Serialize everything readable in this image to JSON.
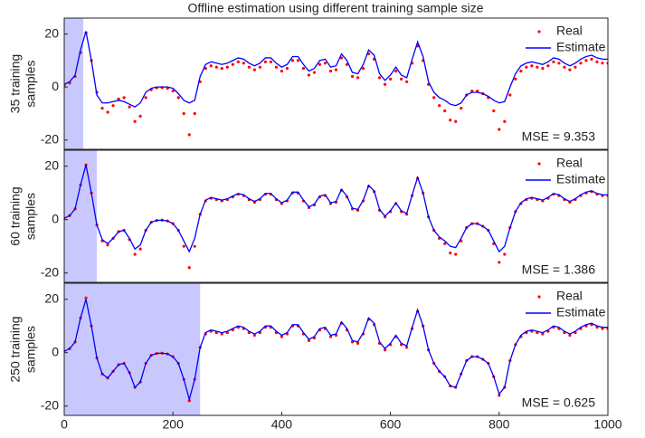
{
  "chart_data": [
    {
      "type": "line",
      "title": "Offline estimation using different training sample size",
      "ylabel": [
        "35 training",
        "samples"
      ],
      "annotation": "MSE = 9.353",
      "highlight": [
        0,
        35
      ],
      "ylim": [
        -23.5,
        26
      ],
      "yticks": [
        -20,
        0,
        20
      ],
      "xlim": [
        0,
        1000
      ],
      "legend": "upper right",
      "x": [
        0,
        10,
        20,
        30,
        40,
        50,
        60,
        70,
        80,
        90,
        100,
        110,
        120,
        130,
        140,
        150,
        160,
        170,
        180,
        190,
        200,
        210,
        220,
        230,
        240,
        250,
        260,
        270,
        280,
        290,
        300,
        310,
        320,
        330,
        340,
        350,
        360,
        370,
        380,
        390,
        400,
        410,
        420,
        430,
        440,
        450,
        460,
        470,
        480,
        490,
        500,
        510,
        520,
        530,
        540,
        550,
        560,
        570,
        580,
        590,
        600,
        610,
        620,
        630,
        640,
        650,
        660,
        670,
        680,
        690,
        700,
        710,
        720,
        730,
        740,
        750,
        760,
        770,
        780,
        790,
        800,
        810,
        820,
        830,
        840,
        850,
        860,
        870,
        880,
        890,
        900,
        910,
        920,
        930,
        940,
        950,
        960,
        970,
        980,
        990,
        1000
      ],
      "series": [
        {
          "name": "Real",
          "color": "#ff0000",
          "style": "dots",
          "values": [
            0.5,
            1.5,
            4,
            13,
            20.5,
            10,
            -2,
            -8,
            -9.5,
            -7,
            -4.5,
            -4,
            -7.5,
            -13,
            -11,
            -4,
            -1,
            -0.3,
            -0.2,
            -0.5,
            -1.5,
            -4,
            -10,
            -18,
            -10,
            2,
            7,
            8,
            7.5,
            7,
            7.5,
            8.5,
            9.5,
            9,
            7.5,
            6.5,
            7.5,
            9.5,
            9.5,
            7.5,
            6,
            7,
            10,
            10,
            7,
            4.5,
            5.5,
            8.5,
            9,
            6,
            6.5,
            11,
            8.5,
            4,
            3.5,
            7,
            12.5,
            10.5,
            3.5,
            1,
            3,
            6,
            3,
            2,
            9,
            15.5,
            10,
            1,
            -4,
            -7,
            -9,
            -12.5,
            -13,
            -8,
            -3,
            -1.5,
            -1.5,
            -2.5,
            -4,
            -9,
            -16,
            -13,
            -3,
            3,
            6,
            7.5,
            8,
            7.5,
            7,
            8,
            9.5,
            9,
            7.5,
            6.5,
            7.5,
            9,
            10,
            10.5,
            9.5,
            9,
            9
          ]
        },
        {
          "name": "Estimate",
          "color": "#0000ff",
          "style": "line",
          "values": [
            1,
            2,
            4.5,
            14,
            21,
            10,
            -3,
            -6,
            -6,
            -5.5,
            -5,
            -5.5,
            -6.5,
            -7.5,
            -6,
            -2,
            -0.5,
            0,
            0,
            0,
            -0.5,
            -2.5,
            -5,
            -6,
            -5,
            4,
            8.5,
            9.5,
            9,
            8.5,
            9,
            10,
            11,
            10.5,
            9,
            8,
            9,
            11,
            11,
            9,
            7.5,
            8.5,
            11.5,
            11.5,
            8.5,
            6,
            7,
            10,
            10.5,
            7.5,
            8,
            12.5,
            10,
            5.5,
            5,
            8.5,
            14,
            12,
            5,
            2.5,
            4.5,
            7.5,
            4.5,
            3.5,
            10.5,
            17,
            11.5,
            2,
            -2,
            -4,
            -5,
            -6.5,
            -7,
            -6,
            -3,
            -2,
            -2,
            -2.5,
            -3.5,
            -5,
            -6,
            -5.5,
            0,
            5,
            8,
            9,
            9.5,
            9,
            8.5,
            9.5,
            11,
            10.5,
            9,
            8,
            9,
            10.5,
            11.5,
            12,
            11,
            10.5,
            10.5
          ]
        }
      ]
    },
    {
      "type": "line",
      "ylabel": [
        "60 training",
        "samples"
      ],
      "annotation": "MSE = 1.386",
      "highlight": [
        0,
        60
      ],
      "ylim": [
        -23.5,
        26
      ],
      "yticks": [
        -20,
        0,
        20
      ],
      "xlim": [
        0,
        1000
      ],
      "legend": "upper right",
      "x": [
        0,
        10,
        20,
        30,
        40,
        50,
        60,
        70,
        80,
        90,
        100,
        110,
        120,
        130,
        140,
        150,
        160,
        170,
        180,
        190,
        200,
        210,
        220,
        230,
        240,
        250,
        260,
        270,
        280,
        290,
        300,
        310,
        320,
        330,
        340,
        350,
        360,
        370,
        380,
        390,
        400,
        410,
        420,
        430,
        440,
        450,
        460,
        470,
        480,
        490,
        500,
        510,
        520,
        530,
        540,
        550,
        560,
        570,
        580,
        590,
        600,
        610,
        620,
        630,
        640,
        650,
        660,
        670,
        680,
        690,
        700,
        710,
        720,
        730,
        740,
        750,
        760,
        770,
        780,
        790,
        800,
        810,
        820,
        830,
        840,
        850,
        860,
        870,
        880,
        890,
        900,
        910,
        920,
        930,
        940,
        950,
        960,
        970,
        980,
        990,
        1000
      ],
      "series": [
        {
          "name": "Real",
          "color": "#ff0000",
          "style": "dots",
          "values": [
            0.5,
            1.5,
            4,
            13,
            20.5,
            10,
            -2,
            -8,
            -9.5,
            -7,
            -4.5,
            -4,
            -7.5,
            -13,
            -11,
            -4,
            -1,
            -0.3,
            -0.2,
            -0.5,
            -1.5,
            -4,
            -10,
            -18,
            -10,
            2,
            7,
            8,
            7.5,
            7,
            7.5,
            8.5,
            9.5,
            9,
            7.5,
            6.5,
            7.5,
            9.5,
            9.5,
            7.5,
            6,
            7,
            10,
            10,
            7,
            4.5,
            5.5,
            8.5,
            9,
            6,
            6.5,
            11,
            8.5,
            4,
            3.5,
            7,
            12.5,
            10.5,
            3.5,
            1,
            3,
            6,
            3,
            2,
            9,
            15.5,
            10,
            1,
            -4,
            -7,
            -9,
            -12.5,
            -13,
            -8,
            -3,
            -1.5,
            -1.5,
            -2.5,
            -4,
            -9,
            -16,
            -13,
            -3,
            3,
            6,
            7.5,
            8,
            7.5,
            7,
            8,
            9.5,
            9,
            7.5,
            6.5,
            7.5,
            9,
            10,
            10.5,
            9.5,
            9,
            9
          ]
        },
        {
          "name": "Estimate",
          "color": "#0000ff",
          "style": "line",
          "values": [
            0.5,
            1.5,
            4,
            13,
            20.5,
            10,
            -2,
            -7.5,
            -9,
            -7,
            -4.5,
            -4,
            -7,
            -11,
            -9.5,
            -4,
            -1,
            -0.3,
            -0.2,
            -0.5,
            -1.5,
            -4,
            -8,
            -12,
            -7,
            2,
            7.3,
            8.3,
            7.8,
            7.3,
            7.8,
            8.8,
            9.8,
            9.3,
            7.8,
            6.8,
            7.8,
            9.8,
            9.8,
            7.8,
            6.3,
            7.3,
            10.3,
            10.3,
            7.3,
            4.8,
            5.8,
            8.8,
            9.3,
            6.3,
            6.8,
            11.3,
            8.8,
            4.3,
            3.8,
            7.3,
            12.8,
            10.8,
            3.8,
            1.3,
            3.3,
            6.3,
            3.3,
            2.3,
            9.3,
            15.8,
            10,
            1,
            -4,
            -6.5,
            -8,
            -10,
            -10.5,
            -7,
            -3,
            -1.5,
            -1.5,
            -2.5,
            -4,
            -8,
            -12,
            -10,
            -3,
            3,
            6.3,
            7.8,
            8.3,
            7.8,
            7.3,
            8.3,
            9.8,
            9.3,
            7.8,
            6.8,
            7.8,
            9.3,
            10.3,
            10.8,
            9.8,
            9.3,
            9.3
          ]
        }
      ]
    },
    {
      "type": "line",
      "ylabel": [
        "250 training",
        "samples"
      ],
      "annotation": "MSE = 0.625",
      "highlight": [
        0,
        250
      ],
      "ylim": [
        -23.5,
        26
      ],
      "yticks": [
        -20,
        0,
        20
      ],
      "xlim": [
        0,
        1000
      ],
      "xticks": [
        0,
        200,
        400,
        600,
        800,
        1000
      ],
      "legend": "upper right",
      "x": [
        0,
        10,
        20,
        30,
        40,
        50,
        60,
        70,
        80,
        90,
        100,
        110,
        120,
        130,
        140,
        150,
        160,
        170,
        180,
        190,
        200,
        210,
        220,
        230,
        240,
        250,
        260,
        270,
        280,
        290,
        300,
        310,
        320,
        330,
        340,
        350,
        360,
        370,
        380,
        390,
        400,
        410,
        420,
        430,
        440,
        450,
        460,
        470,
        480,
        490,
        500,
        510,
        520,
        530,
        540,
        550,
        560,
        570,
        580,
        590,
        600,
        610,
        620,
        630,
        640,
        650,
        660,
        670,
        680,
        690,
        700,
        710,
        720,
        730,
        740,
        750,
        760,
        770,
        780,
        790,
        800,
        810,
        820,
        830,
        840,
        850,
        860,
        870,
        880,
        890,
        900,
        910,
        920,
        930,
        940,
        950,
        960,
        970,
        980,
        990,
        1000
      ],
      "series": [
        {
          "name": "Real",
          "color": "#ff0000",
          "style": "dots",
          "values": [
            0.5,
            1.5,
            4,
            13,
            20.5,
            10,
            -2,
            -8,
            -9.5,
            -7,
            -4.5,
            -4,
            -7.5,
            -13,
            -11,
            -4,
            -1,
            -0.3,
            -0.2,
            -0.5,
            -1.5,
            -4,
            -10,
            -18,
            -10,
            2,
            7,
            8,
            7.5,
            7,
            7.5,
            8.5,
            9.5,
            9,
            7.5,
            6.5,
            7.5,
            9.5,
            9.5,
            7.5,
            6,
            7,
            10,
            10,
            7,
            4.5,
            5.5,
            8.5,
            9,
            6,
            6.5,
            11,
            8.5,
            4,
            3.5,
            7,
            12.5,
            10.5,
            3.5,
            1,
            3,
            6,
            3,
            2,
            9,
            15.5,
            10,
            1,
            -4,
            -7,
            -9,
            -12.5,
            -13,
            -8,
            -3,
            -1.5,
            -1.5,
            -2.5,
            -4,
            -9,
            -16,
            -13,
            -3,
            3,
            6,
            7.5,
            8,
            7.5,
            7,
            8,
            9.5,
            9,
            7.5,
            6.5,
            7.5,
            9,
            10,
            10.5,
            9.5,
            9,
            9
          ]
        },
        {
          "name": "Estimate",
          "color": "#0000ff",
          "style": "line",
          "values": [
            0.5,
            1.5,
            4,
            13,
            20,
            10,
            -2,
            -8,
            -9.5,
            -7,
            -4.5,
            -4,
            -7.5,
            -13,
            -11,
            -4,
            -1,
            -0.3,
            -0.2,
            -0.5,
            -1.5,
            -4,
            -10,
            -17.5,
            -10,
            2,
            7.5,
            8.5,
            8,
            7.5,
            8,
            9,
            10,
            9.5,
            8,
            7,
            8,
            10,
            10,
            8,
            6.5,
            7.5,
            10.5,
            10.5,
            7.5,
            5,
            6,
            9,
            9.5,
            6.5,
            7,
            11.5,
            9,
            4.5,
            4,
            7.5,
            13,
            11,
            4,
            1.5,
            3.5,
            6.5,
            3.5,
            2.5,
            9.5,
            16,
            10,
            1,
            -4,
            -7,
            -9,
            -12.5,
            -13,
            -8,
            -3,
            -1.5,
            -1.5,
            -2.5,
            -4,
            -9,
            -15.5,
            -13,
            -3,
            3,
            6.5,
            8,
            8.5,
            8,
            7.5,
            8.5,
            10,
            9.5,
            8,
            7,
            8,
            9.5,
            10.5,
            11,
            10,
            9.5,
            9.5
          ]
        }
      ]
    }
  ]
}
